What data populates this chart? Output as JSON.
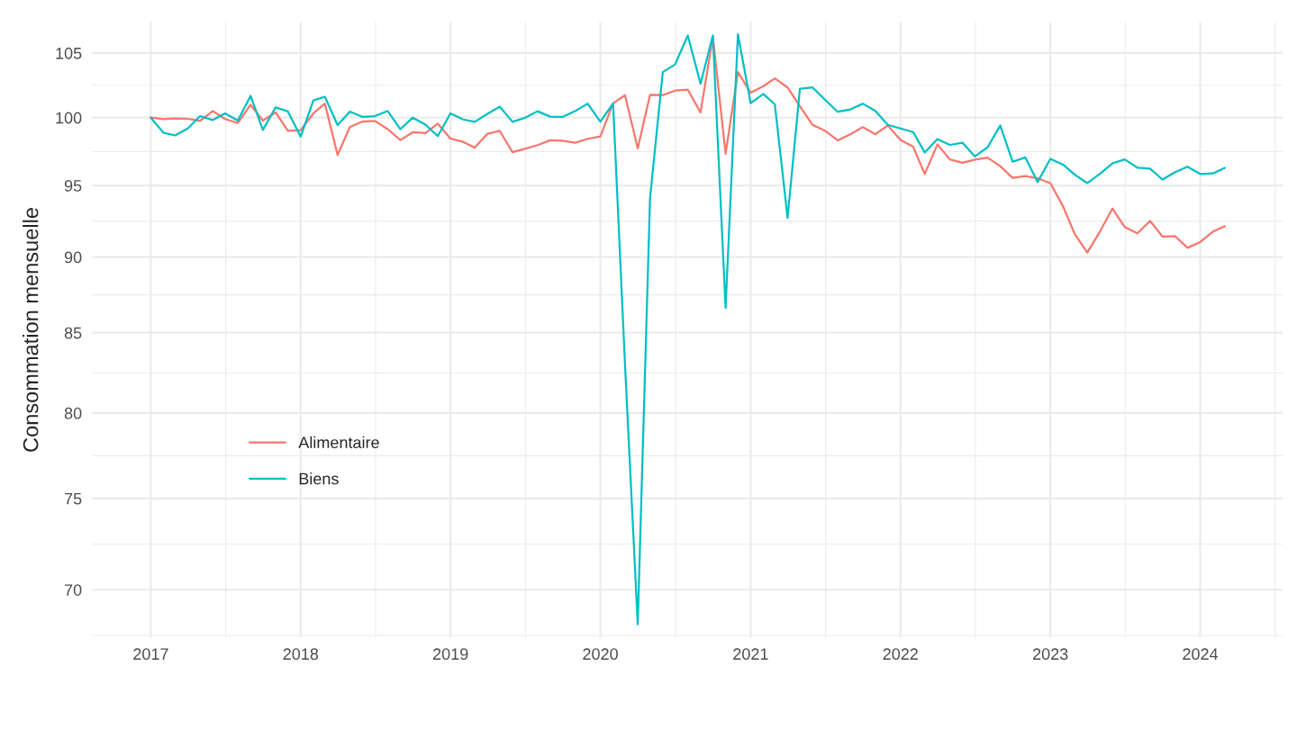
{
  "chart_data": {
    "type": "line",
    "ylabel": "Consommation mensuelle",
    "log": "y",
    "grid": true,
    "legend": "bottom left",
    "x": [
      "2017-01",
      "2017-02",
      "2017-03",
      "2017-04",
      "2017-05",
      "2017-06",
      "2017-07",
      "2017-08",
      "2017-09",
      "2017-10",
      "2017-11",
      "2017-12",
      "2018-01",
      "2018-02",
      "2018-03",
      "2018-04",
      "2018-05",
      "2018-06",
      "2018-07",
      "2018-08",
      "2018-09",
      "2018-10",
      "2018-11",
      "2018-12",
      "2019-01",
      "2019-02",
      "2019-03",
      "2019-04",
      "2019-05",
      "2019-06",
      "2019-07",
      "2019-08",
      "2019-09",
      "2019-10",
      "2019-11",
      "2019-12",
      "2020-01",
      "2020-02",
      "2020-03",
      "2020-04",
      "2020-05",
      "2020-06",
      "2020-07",
      "2020-08",
      "2020-09",
      "2020-10",
      "2020-11",
      "2020-12",
      "2021-01",
      "2021-02",
      "2021-03",
      "2021-04",
      "2021-05",
      "2021-06",
      "2021-07",
      "2021-08",
      "2021-09",
      "2021-10",
      "2021-11",
      "2021-12",
      "2022-01",
      "2022-02",
      "2022-03",
      "2022-04",
      "2022-05",
      "2022-06",
      "2022-07",
      "2022-08",
      "2022-09",
      "2022-10",
      "2022-11",
      "2022-12",
      "2023-01",
      "2023-02",
      "2023-03",
      "2023-04",
      "2023-05",
      "2023-06",
      "2023-07",
      "2023-08",
      "2023-09",
      "2023-10",
      "2023-11",
      "2023-12",
      "2024-01",
      "2024-02",
      "2024-03"
    ],
    "xlim": [
      "2016-08-11",
      "2024-07-20"
    ],
    "xticks": [
      {
        "value": "2017-01-01",
        "label": "2017"
      },
      {
        "value": "2018-01-01",
        "label": "2018"
      },
      {
        "value": "2019-01-01",
        "label": "2019"
      },
      {
        "value": "2020-01-01",
        "label": "2020"
      },
      {
        "value": "2021-01-01",
        "label": "2021"
      },
      {
        "value": "2022-01-01",
        "label": "2022"
      },
      {
        "value": "2023-01-01",
        "label": "2023"
      },
      {
        "value": "2024-01-01",
        "label": "2024"
      }
    ],
    "ylim": [
      67.5,
      107.5
    ],
    "yticks": [
      70,
      75,
      80,
      85,
      90,
      95,
      100,
      105
    ],
    "series": [
      {
        "name": "Alimentaire",
        "color": "#f8766d",
        "values": [
          100.0,
          99.89,
          99.93,
          99.91,
          99.75,
          100.5,
          99.89,
          99.59,
          100.97,
          99.77,
          100.39,
          99.0,
          99.05,
          100.32,
          101.06,
          97.22,
          99.3,
          99.7,
          99.75,
          99.13,
          98.32,
          98.9,
          98.84,
          99.54,
          98.43,
          98.18,
          97.76,
          98.79,
          99.0,
          97.42,
          97.67,
          97.94,
          98.3,
          98.27,
          98.12,
          98.41,
          98.59,
          101.08,
          101.71,
          97.71,
          101.73,
          101.71,
          102.06,
          102.13,
          100.39,
          106.3,
          97.3,
          103.5,
          101.9,
          102.4,
          103.0,
          102.3,
          100.85,
          99.45,
          99.02,
          98.3,
          98.75,
          99.29,
          98.75,
          99.41,
          98.32,
          97.82,
          95.83,
          98.0,
          96.89,
          96.64,
          96.87,
          97.02,
          96.4,
          95.55,
          95.68,
          95.52,
          95.17,
          93.51,
          91.61,
          90.31,
          91.71,
          93.36,
          92.07,
          91.63,
          92.49,
          91.41,
          91.43,
          90.63,
          91.03,
          91.75,
          92.12
        ]
      },
      {
        "name": "Biens",
        "color": "#00bfc4",
        "values": [
          100.0,
          98.86,
          98.66,
          99.18,
          100.11,
          99.82,
          100.32,
          99.77,
          101.66,
          99.07,
          100.78,
          100.46,
          98.57,
          101.31,
          101.59,
          99.43,
          100.46,
          100.05,
          100.11,
          100.5,
          99.13,
          100.0,
          99.47,
          98.61,
          100.32,
          99.86,
          99.68,
          100.28,
          100.83,
          99.68,
          99.98,
          100.48,
          100.07,
          100.05,
          100.5,
          101.06,
          99.7,
          101.07,
          83.0,
          68.2,
          94.1,
          103.5,
          104.1,
          106.4,
          102.6,
          106.4,
          86.6,
          106.5,
          101.1,
          101.8,
          101.0,
          92.7,
          102.2,
          102.3,
          101.36,
          100.44,
          100.62,
          101.06,
          100.5,
          99.45,
          99.18,
          98.91,
          97.4,
          98.39,
          97.96,
          98.12,
          97.11,
          97.78,
          99.41,
          96.72,
          97.04,
          95.24,
          96.93,
          96.51,
          95.79,
          95.17,
          95.83,
          96.6,
          96.89,
          96.29,
          96.22,
          95.43,
          95.96,
          96.36,
          95.83,
          95.87,
          96.27
        ]
      }
    ]
  }
}
